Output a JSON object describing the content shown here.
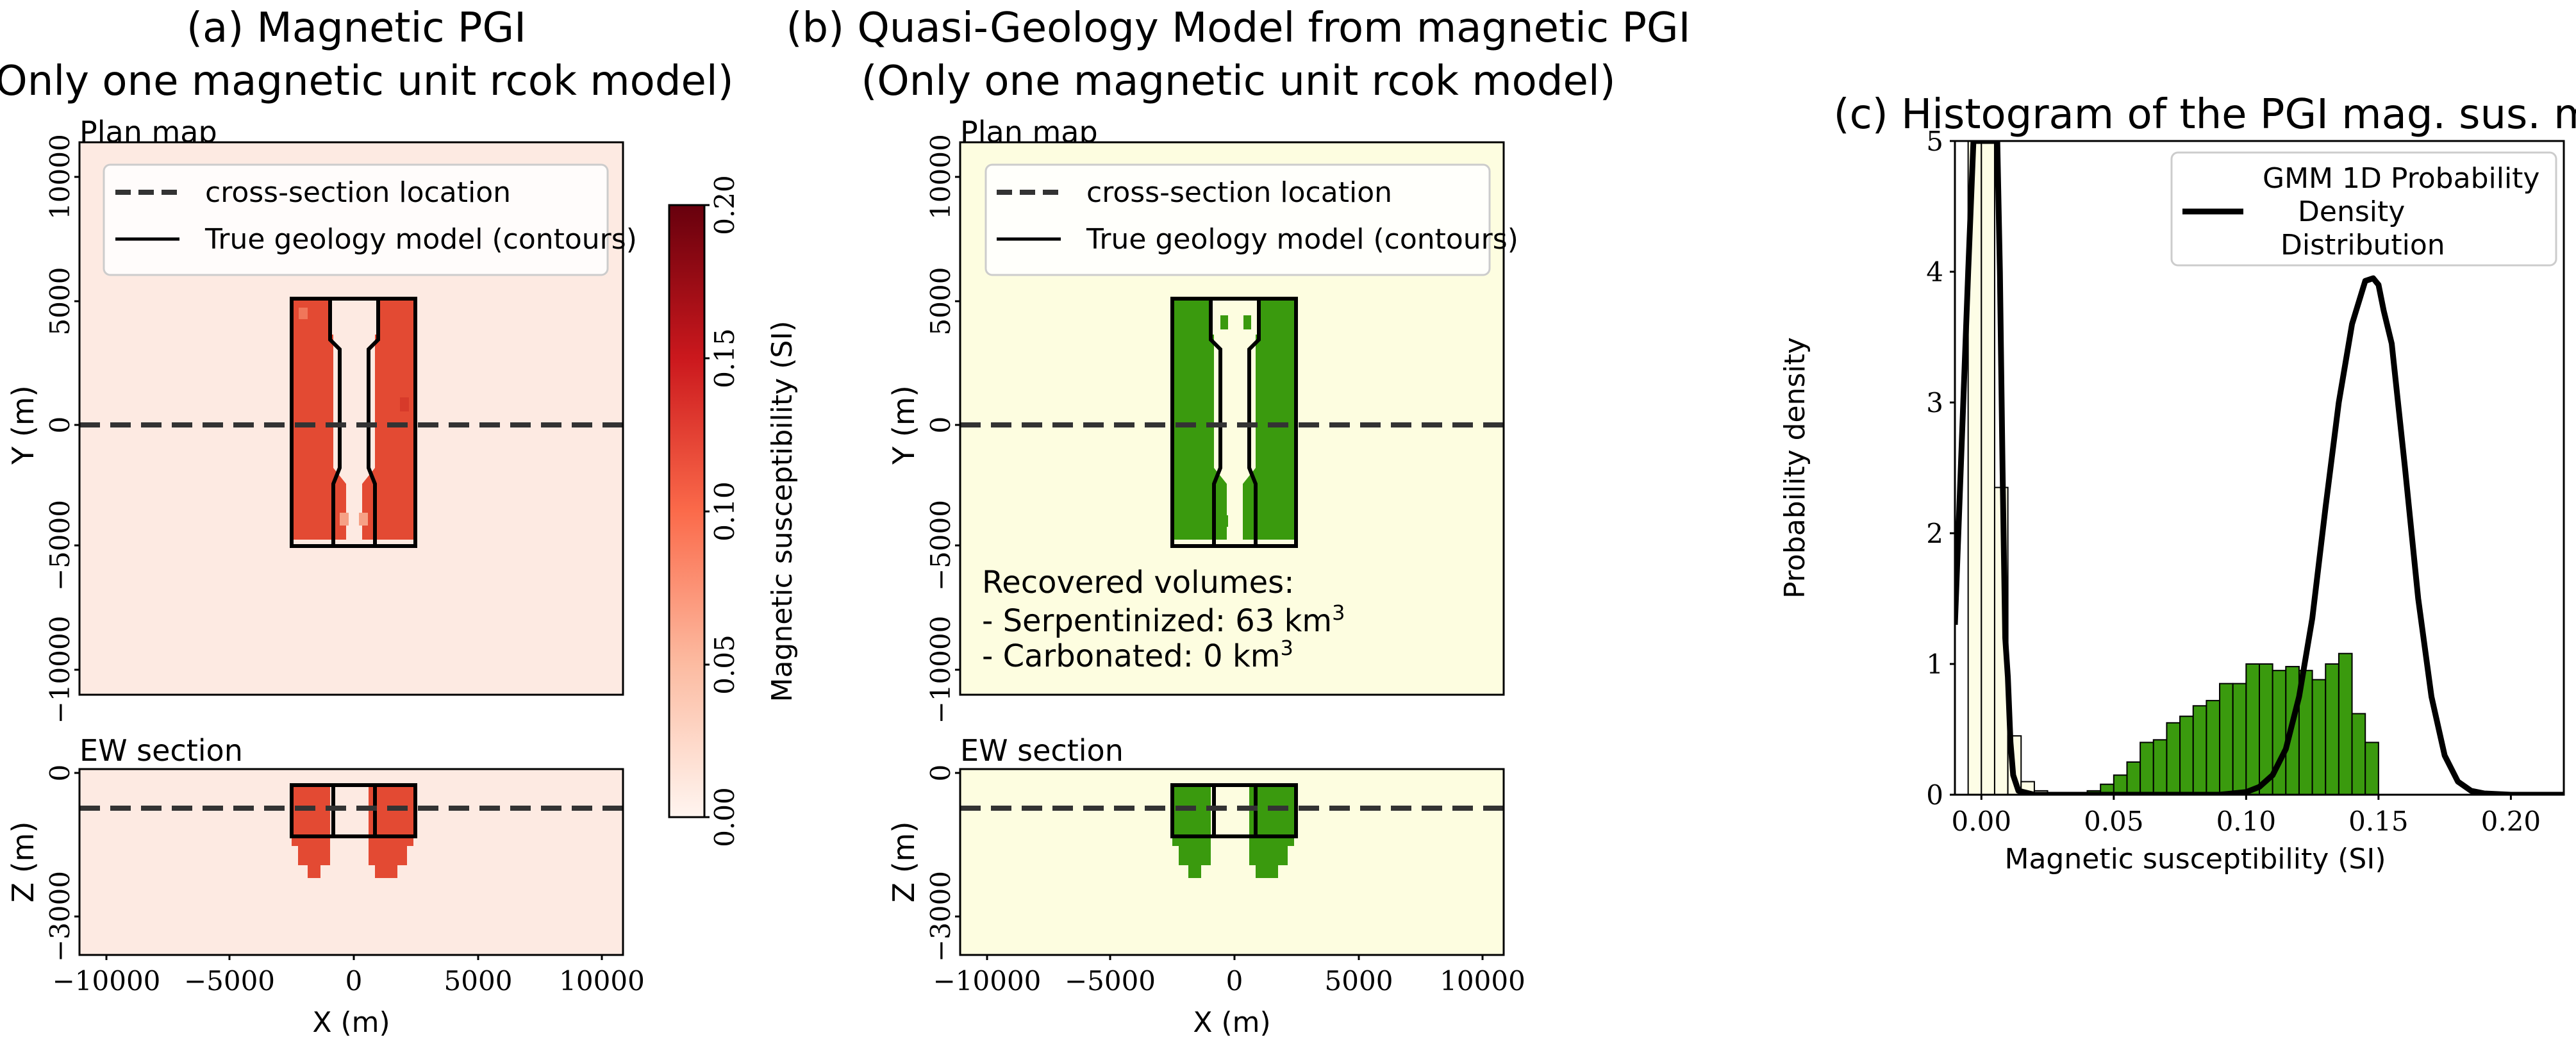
{
  "figure": {
    "panel_a": {
      "title_line1": "(a) Magnetic PGI",
      "title_line2": "(Only one magnetic unit rcok model)",
      "plan_label": "Plan map",
      "section_label": "EW section",
      "ylabel_plan": "Y (m)",
      "ylabel_section": "Z (m)",
      "xlabel": "X (m)",
      "legend": [
        "cross-section location",
        "True geology model (contours)"
      ],
      "colorbar": {
        "label": "Magnetic susceptibility (SI)",
        "ticks": [
          "0.00",
          "0.05",
          "0.10",
          "0.15",
          "0.20"
        ],
        "range": [
          0,
          0.2
        ],
        "colormap": "Reds"
      }
    },
    "panel_b": {
      "title_line1": "(b) Quasi-Geology Model from magnetic PGI",
      "title_line2": "(Only one magnetic unit rcok model)",
      "plan_label": "Plan map",
      "section_label": "EW section",
      "ylabel_plan": "Y (m)",
      "ylabel_section": "Z (m)",
      "xlabel": "X (m)",
      "legend": [
        "cross-section location",
        "True geology model (contours)"
      ],
      "annotation": {
        "line1": "Recovered volumes:",
        "line2_prefix": "- Serpentinized: 63 km",
        "line2_sup": "3",
        "line3_prefix": "- Carbonated: 0 km",
        "line3_sup": "3"
      }
    },
    "map_axes": {
      "plan_yticks": [
        "−10000",
        "−5000",
        "0",
        "5000",
        "10000"
      ],
      "section_yticks": [
        "−3000",
        "0"
      ],
      "xticks": [
        "−10000",
        "−5000",
        "0",
        "5000",
        "10000"
      ]
    }
  },
  "chart_data": {
    "type": "bar",
    "title": "(c) Histogram of the PGI mag. sus. model",
    "xlabel": "Magnetic susceptibility (SI)",
    "ylabel": "Probability density",
    "xlim": [
      -0.01,
      0.22
    ],
    "ylim": [
      0,
      5
    ],
    "xticks": [
      "0.00",
      "0.05",
      "0.10",
      "0.15",
      "0.20"
    ],
    "yticks": [
      "0",
      "1",
      "2",
      "3",
      "4",
      "5"
    ],
    "legend": {
      "position": "top-right",
      "entries": [
        "GMM 1D Probability",
        "Density",
        "Distribution"
      ]
    },
    "bin_width": 0.005,
    "bins": [
      {
        "x": -0.0025,
        "height": 5.0,
        "color": "#fdfde6"
      },
      {
        "x": 0.0025,
        "height": 5.0,
        "color": "#fdfde6"
      },
      {
        "x": 0.0075,
        "height": 2.35,
        "color": "#fdfde6"
      },
      {
        "x": 0.0125,
        "height": 0.45,
        "color": "#fdfde6"
      },
      {
        "x": 0.0175,
        "height": 0.1,
        "color": "#fdfde6"
      },
      {
        "x": 0.0225,
        "height": 0.03,
        "color": "#fdfde6"
      },
      {
        "x": 0.0425,
        "height": 0.03,
        "color": "#3a9a0e"
      },
      {
        "x": 0.0475,
        "height": 0.08,
        "color": "#3a9a0e"
      },
      {
        "x": 0.0525,
        "height": 0.15,
        "color": "#3a9a0e"
      },
      {
        "x": 0.0575,
        "height": 0.25,
        "color": "#3a9a0e"
      },
      {
        "x": 0.0625,
        "height": 0.4,
        "color": "#3a9a0e"
      },
      {
        "x": 0.0675,
        "height": 0.42,
        "color": "#3a9a0e"
      },
      {
        "x": 0.0725,
        "height": 0.55,
        "color": "#3a9a0e"
      },
      {
        "x": 0.0775,
        "height": 0.6,
        "color": "#3a9a0e"
      },
      {
        "x": 0.0825,
        "height": 0.68,
        "color": "#3a9a0e"
      },
      {
        "x": 0.0875,
        "height": 0.72,
        "color": "#3a9a0e"
      },
      {
        "x": 0.0925,
        "height": 0.85,
        "color": "#3a9a0e"
      },
      {
        "x": 0.0975,
        "height": 0.85,
        "color": "#3a9a0e"
      },
      {
        "x": 0.1025,
        "height": 1.0,
        "color": "#3a9a0e"
      },
      {
        "x": 0.1075,
        "height": 1.0,
        "color": "#3a9a0e"
      },
      {
        "x": 0.1125,
        "height": 0.95,
        "color": "#3a9a0e"
      },
      {
        "x": 0.1175,
        "height": 0.98,
        "color": "#3a9a0e"
      },
      {
        "x": 0.1225,
        "height": 0.95,
        "color": "#3a9a0e"
      },
      {
        "x": 0.1275,
        "height": 0.88,
        "color": "#3a9a0e"
      },
      {
        "x": 0.1325,
        "height": 1.0,
        "color": "#3a9a0e"
      },
      {
        "x": 0.1375,
        "height": 1.08,
        "color": "#3a9a0e"
      },
      {
        "x": 0.1425,
        "height": 0.62,
        "color": "#3a9a0e"
      },
      {
        "x": 0.1475,
        "height": 0.4,
        "color": "#3a9a0e"
      }
    ],
    "series": [
      {
        "name": "GMM 1D Probability Density Distribution",
        "x": [
          -0.01,
          -0.005,
          -0.003,
          -0.002,
          0.0,
          0.002,
          0.004,
          0.006,
          0.007,
          0.008,
          0.009,
          0.01,
          0.011,
          0.012,
          0.014,
          0.02,
          0.04,
          0.09,
          0.1,
          0.105,
          0.11,
          0.115,
          0.12,
          0.125,
          0.13,
          0.135,
          0.14,
          0.145,
          0.148,
          0.15,
          0.152,
          0.155,
          0.16,
          0.165,
          0.17,
          0.175,
          0.18,
          0.185,
          0.19,
          0.2,
          0.22
        ],
        "y": [
          1.3,
          4.0,
          5.0,
          5.0,
          5.0,
          5.0,
          5.0,
          5.0,
          4.0,
          2.5,
          1.2,
          0.9,
          0.4,
          0.15,
          0.03,
          0.0,
          0.0,
          0.0,
          0.02,
          0.06,
          0.15,
          0.35,
          0.75,
          1.35,
          2.2,
          3.0,
          3.6,
          3.93,
          3.95,
          3.9,
          3.7,
          3.45,
          2.5,
          1.5,
          0.75,
          0.3,
          0.1,
          0.03,
          0.01,
          0.0,
          0.0
        ],
        "color": "#000000"
      }
    ]
  }
}
